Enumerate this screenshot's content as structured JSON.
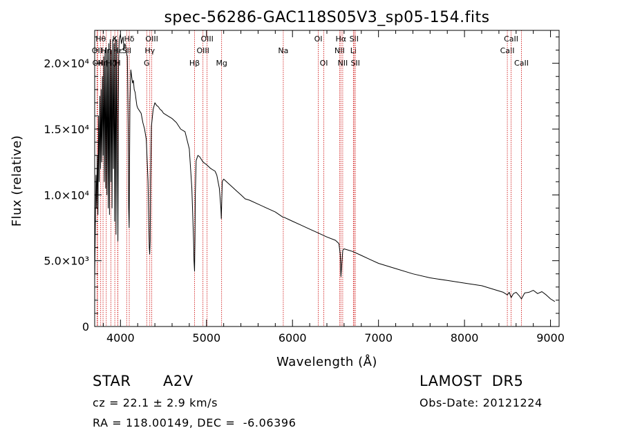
{
  "chart_data": {
    "type": "line",
    "title": "spec-56286-GAC118S05V3_sp05-154.fits",
    "xlabel": "Wavelength (Å)",
    "ylabel": "Flux (relative)",
    "xlim": [
      3700,
      9100
    ],
    "ylim": [
      0,
      22500
    ],
    "x_ticks": [
      4000,
      5000,
      6000,
      7000,
      8000,
      9000
    ],
    "y_ticks": [
      {
        "value": 0,
        "label": "0"
      },
      {
        "value": 5000,
        "label": "5.0×10³"
      },
      {
        "value": 10000,
        "label": "1.0×10⁴"
      },
      {
        "value": 15000,
        "label": "1.5×10⁴"
      },
      {
        "value": 20000,
        "label": "2.0×10⁴"
      }
    ],
    "grid": false,
    "line_color": "#000000",
    "marker_color": "#cc0000",
    "series": [
      {
        "x": [
          3700,
          3708,
          3715,
          3722,
          3730,
          3738,
          3745,
          3752,
          3760,
          3768,
          3775,
          3782,
          3790,
          3798,
          3805,
          3812,
          3820,
          3828,
          3835,
          3842,
          3850,
          3858,
          3865,
          3872,
          3880,
          3888,
          3895,
          3902,
          3910,
          3918,
          3925,
          3932,
          3940,
          3948,
          3955,
          3962,
          3970,
          3978,
          3985,
          3992,
          4000,
          4010,
          4020,
          4030,
          4040,
          4050,
          4060,
          4070,
          4080,
          4090,
          4095,
          4101,
          4105,
          4110,
          4120,
          4130,
          4140,
          4150,
          4160,
          4170,
          4180,
          4190,
          4200,
          4220,
          4240,
          4260,
          4280,
          4300,
          4320,
          4330,
          4335,
          4340,
          4345,
          4350,
          4360,
          4380,
          4400,
          4420,
          4440,
          4460,
          4480,
          4500,
          4550,
          4600,
          4650,
          4700,
          4750,
          4800,
          4830,
          4850,
          4855,
          4861,
          4866,
          4870,
          4880,
          4900,
          4920,
          4940,
          4960,
          4980,
          5000,
          5050,
          5100,
          5120,
          5150,
          5167,
          5172,
          5175,
          5183,
          5190,
          5200,
          5250,
          5300,
          5350,
          5400,
          5450,
          5500,
          5600,
          5700,
          5800,
          5890,
          5900,
          6000,
          6100,
          6200,
          6300,
          6400,
          6500,
          6540,
          6555,
          6563,
          6570,
          6585,
          6600,
          6700,
          6800,
          6900,
          7000,
          7200,
          7400,
          7600,
          7800,
          8000,
          8200,
          8400,
          8450,
          8498,
          8520,
          8542,
          8570,
          8600,
          8640,
          8662,
          8700,
          8750,
          8800,
          8850,
          8900,
          8950,
          9000,
          9050
        ],
        "values": [
          3500,
          8000,
          11500,
          9000,
          13000,
          8500,
          16000,
          11000,
          17500,
          12000,
          18000,
          12500,
          19000,
          13000,
          20500,
          11000,
          21000,
          10500,
          21200,
          10000,
          21000,
          9000,
          21500,
          8500,
          21800,
          11000,
          21000,
          9000,
          21800,
          12000,
          21500,
          8000,
          22000,
          7000,
          21800,
          15000,
          6500,
          20000,
          21800,
          22000,
          22200,
          21500,
          21800,
          22000,
          21000,
          21500,
          21300,
          20800,
          20500,
          15000,
          9000,
          7500,
          12000,
          17000,
          19500,
          19000,
          18500,
          18700,
          18000,
          17800,
          17300,
          16800,
          16600,
          16400,
          16200,
          15500,
          15000,
          14200,
          11000,
          7500,
          6000,
          5500,
          6500,
          11000,
          15200,
          16500,
          17000,
          16800,
          16700,
          16500,
          16400,
          16200,
          16000,
          15800,
          15500,
          15000,
          14800,
          13500,
          10500,
          6500,
          5000,
          4200,
          6500,
          10000,
          12600,
          13000,
          12900,
          12700,
          12500,
          12400,
          12300,
          12000,
          11800,
          11500,
          10500,
          9000,
          8200,
          9000,
          11000,
          11100,
          11200,
          10900,
          10600,
          10300,
          10000,
          9700,
          9600,
          9300,
          9000,
          8700,
          8300,
          8300,
          8000,
          7700,
          7400,
          7100,
          6800,
          6550,
          6300,
          5500,
          3800,
          4500,
          5800,
          5900,
          5700,
          5400,
          5100,
          4800,
          4400,
          4000,
          3700,
          3500,
          3300,
          3100,
          2700,
          2600,
          2400,
          2600,
          2200,
          2500,
          2600,
          2300,
          2100,
          2550,
          2600,
          2750,
          2500,
          2650,
          2400,
          2100,
          1900
        ]
      }
    ],
    "line_markers": [
      {
        "x": 3727,
        "label": "OII",
        "row": 1
      },
      {
        "x": 3734,
        "label": "OII",
        "row": 2
      },
      {
        "x": 3770,
        "label": "Hθ",
        "row": 0
      },
      {
        "x": 3797,
        "label": "Hη",
        "row": 2
      },
      {
        "x": 3835,
        "label": "Hη",
        "row": 1
      },
      {
        "x": 3889,
        "label": "Hζ",
        "row": 2
      },
      {
        "x": 3934,
        "label": "K",
        "row": 0
      },
      {
        "x": 3969,
        "label": "H",
        "row": 2
      },
      {
        "x": 3970,
        "label": "Hε",
        "row": 1
      },
      {
        "x": 4072,
        "label": "SII",
        "row": 1
      },
      {
        "x": 4102,
        "label": "Hδ",
        "row": 0
      },
      {
        "x": 4305,
        "label": "G",
        "row": 2
      },
      {
        "x": 4341,
        "label": "Hγ",
        "row": 1
      },
      {
        "x": 4364,
        "label": "OIII",
        "row": 0
      },
      {
        "x": 4861,
        "label": "Hβ",
        "row": 2
      },
      {
        "x": 4959,
        "label": "OIII",
        "row": 1
      },
      {
        "x": 5007,
        "label": "OIII",
        "row": 0
      },
      {
        "x": 5176,
        "label": "Mg",
        "row": 2
      },
      {
        "x": 5893,
        "label": "Na",
        "row": 1
      },
      {
        "x": 6300,
        "label": "OI",
        "row": 0
      },
      {
        "x": 6364,
        "label": "OI",
        "row": 2
      },
      {
        "x": 6548,
        "label": "NII",
        "row": 1
      },
      {
        "x": 6563,
        "label": "Hα",
        "row": 0
      },
      {
        "x": 6584,
        "label": "NII",
        "row": 2
      },
      {
        "x": 6708,
        "label": "Li",
        "row": 1
      },
      {
        "x": 6716,
        "label": "SII",
        "row": 0
      },
      {
        "x": 6731,
        "label": "SII",
        "row": 2
      },
      {
        "x": 8498,
        "label": "CaII",
        "row": 1
      },
      {
        "x": 8542,
        "label": "CaII",
        "row": 0
      },
      {
        "x": 8662,
        "label": "CaII",
        "row": 2
      }
    ]
  },
  "info": {
    "object_class": "STAR",
    "subclass": "A2V",
    "survey": "LAMOST  DR5",
    "redshift": "cz = 22.1 ± 2.9 km/s",
    "obs_date": "Obs-Date: 20121224",
    "coords": "RA = 118.00149, DEC =  -6.06396"
  }
}
